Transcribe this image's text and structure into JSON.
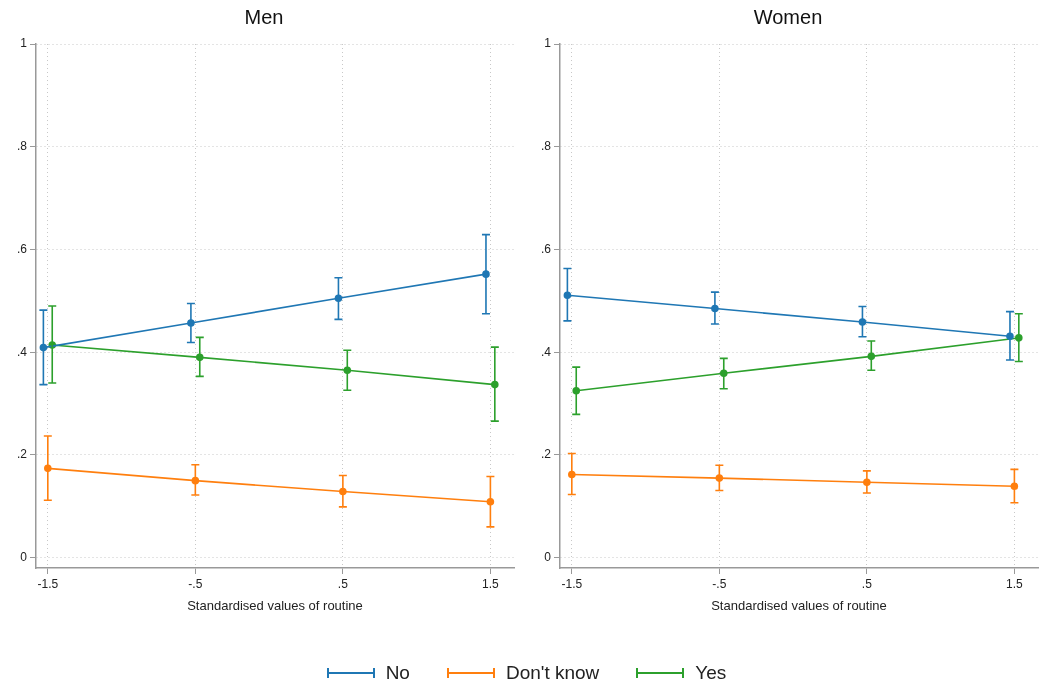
{
  "chart_data": [
    {
      "type": "line",
      "title": "Men",
      "xlabel": "Standardised values of routine",
      "xlim": [
        -1.58,
        1.66
      ],
      "ylim": [
        -0.02,
        1
      ],
      "xticks": [
        {
          "value": -1.5,
          "label": "-1.5"
        },
        {
          "value": -0.5,
          "label": "-.5"
        },
        {
          "value": 0.5,
          "label": ".5"
        },
        {
          "value": 1.5,
          "label": "1.5"
        }
      ],
      "yticks": [
        {
          "value": 0,
          "label": "0"
        },
        {
          "value": 0.2,
          "label": ".2"
        },
        {
          "value": 0.4,
          "label": ".4"
        },
        {
          "value": 0.6,
          "label": ".6"
        },
        {
          "value": 0.8,
          "label": ".8"
        },
        {
          "value": 1,
          "label": "1"
        }
      ],
      "grid": true,
      "marker": "circle",
      "line_style": "solid",
      "legend": "bottom",
      "series": [
        {
          "name": "No",
          "color": "#1f77b4",
          "x": [
            -1.53,
            -0.53,
            0.47,
            1.47
          ],
          "values": [
            0.409,
            0.457,
            0.505,
            0.552
          ],
          "errors": [
            [
              0.337,
              0.482
            ],
            [
              0.419,
              0.495
            ],
            [
              0.464,
              0.545
            ],
            [
              0.475,
              0.629
            ]
          ]
        },
        {
          "name": "Don't know",
          "color": "#ff7f0e",
          "x": [
            -1.5,
            -0.5,
            0.5,
            1.5
          ],
          "values": [
            0.174,
            0.15,
            0.129,
            0.109
          ],
          "errors": [
            [
              0.112,
              0.237
            ],
            [
              0.122,
              0.181
            ],
            [
              0.099,
              0.16
            ],
            [
              0.06,
              0.158
            ]
          ]
        },
        {
          "name": "Yes",
          "color": "#2ca02c",
          "x": [
            -1.47,
            -0.47,
            0.53,
            1.53
          ],
          "values": [
            0.414,
            0.39,
            0.365,
            0.337
          ],
          "errors": [
            [
              0.34,
              0.49
            ],
            [
              0.353,
              0.429
            ],
            [
              0.326,
              0.404
            ],
            [
              0.266,
              0.41
            ]
          ]
        }
      ]
    },
    {
      "type": "line",
      "title": "Women",
      "xlabel": "Standardised values of routine",
      "xlim": [
        -1.58,
        1.66
      ],
      "ylim": [
        -0.02,
        1
      ],
      "xticks": [
        {
          "value": -1.5,
          "label": "-1.5"
        },
        {
          "value": -0.5,
          "label": "-.5"
        },
        {
          "value": 0.5,
          "label": ".5"
        },
        {
          "value": 1.5,
          "label": "1.5"
        }
      ],
      "yticks": [
        {
          "value": 0,
          "label": "0"
        },
        {
          "value": 0.2,
          "label": ".2"
        },
        {
          "value": 0.4,
          "label": ".4"
        },
        {
          "value": 0.6,
          "label": ".6"
        },
        {
          "value": 0.8,
          "label": ".8"
        },
        {
          "value": 1,
          "label": "1"
        }
      ],
      "grid": true,
      "marker": "circle",
      "line_style": "solid",
      "series": [
        {
          "name": "No",
          "color": "#1f77b4",
          "x": [
            -1.53,
            -0.53,
            0.47,
            1.47
          ],
          "values": [
            0.511,
            0.485,
            0.459,
            0.431
          ],
          "errors": [
            [
              0.461,
              0.563
            ],
            [
              0.455,
              0.517
            ],
            [
              0.43,
              0.489
            ],
            [
              0.385,
              0.479
            ]
          ]
        },
        {
          "name": "Don't know",
          "color": "#ff7f0e",
          "x": [
            -1.5,
            -0.5,
            0.5,
            1.5
          ],
          "values": [
            0.162,
            0.155,
            0.147,
            0.139
          ],
          "errors": [
            [
              0.123,
              0.203
            ],
            [
              0.131,
              0.18
            ],
            [
              0.126,
              0.169
            ],
            [
              0.107,
              0.172
            ]
          ]
        },
        {
          "name": "Yes",
          "color": "#2ca02c",
          "x": [
            -1.47,
            -0.47,
            0.53,
            1.53
          ],
          "values": [
            0.325,
            0.359,
            0.392,
            0.428
          ],
          "errors": [
            [
              0.279,
              0.371
            ],
            [
              0.329,
              0.388
            ],
            [
              0.365,
              0.422
            ],
            [
              0.382,
              0.475
            ]
          ]
        }
      ]
    }
  ]
}
